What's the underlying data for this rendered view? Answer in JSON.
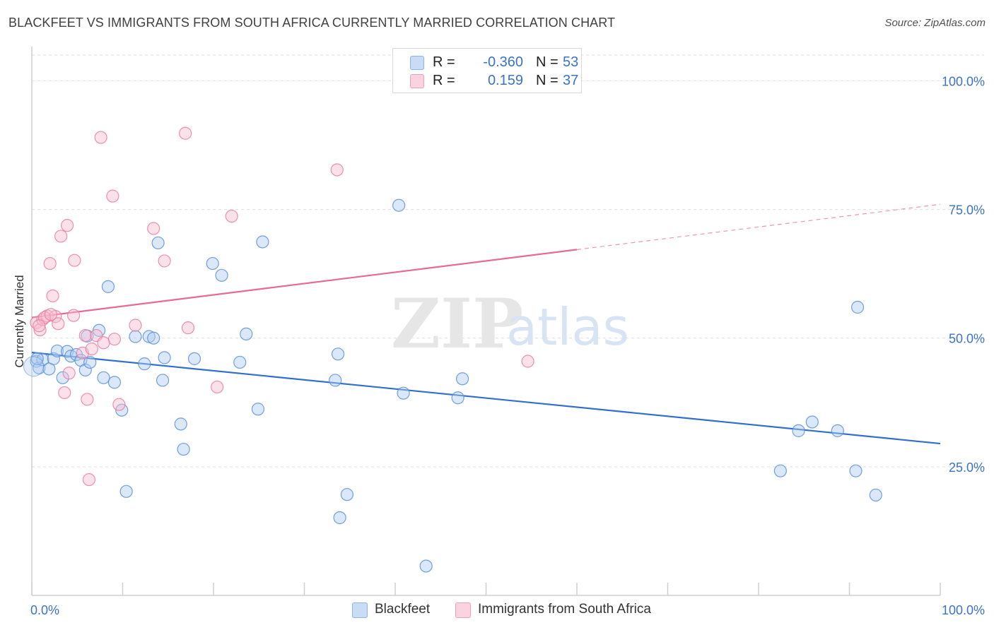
{
  "header": {
    "title": "BLACKFEET VS IMMIGRANTS FROM SOUTH AFRICA CURRENTLY MARRIED CORRELATION CHART",
    "source": "Source: ZipAtlas.com"
  },
  "watermark": {
    "zip": "ZIP",
    "atlas": "atlas"
  },
  "legend": {
    "rows": [
      {
        "r_label": "R =",
        "r_value": "-0.360",
        "n_label": "N =",
        "n_value": "53",
        "color": "#aecbf2"
      },
      {
        "r_label": "R =",
        "r_value": "0.159",
        "n_label": "N =",
        "n_value": "37",
        "color": "#f7bcd0"
      }
    ]
  },
  "bottom_legend": [
    {
      "label": "Blackfeet",
      "color": "#aecbf2"
    },
    {
      "label": "Immigrants from South Africa",
      "color": "#f7bcd0"
    }
  ],
  "chart_data": {
    "type": "scatter",
    "title": "BLACKFEET VS IMMIGRANTS FROM SOUTH AFRICA CURRENTLY MARRIED CORRELATION CHART",
    "xlabel": "",
    "ylabel": "Currently Married",
    "xlim": [
      0,
      100
    ],
    "ylim": [
      0,
      105
    ],
    "x_tick_labels": [
      "0.0%",
      "100.0%"
    ],
    "y_ticks": [
      25,
      50,
      75,
      100
    ],
    "y_tick_labels": [
      "25.0%",
      "50.0%",
      "75.0%",
      "100.0%"
    ],
    "grid": true,
    "legend_position": "top-center",
    "series": [
      {
        "name": "Blackfeet",
        "color": "#5b8fd6",
        "fill": "#aecbf2",
        "trend": {
          "x": [
            0,
            100
          ],
          "y": [
            47.2,
            29.5
          ],
          "solid_to": 100,
          "color": "#2f6fcf"
        },
        "points": [
          [
            0.5,
            45.5
          ],
          [
            0.8,
            44.2
          ],
          [
            1.2,
            45.8
          ],
          [
            1.9,
            44.0
          ],
          [
            2.4,
            46.0
          ],
          [
            2.8,
            47.5
          ],
          [
            3.4,
            42.3
          ],
          [
            3.9,
            47.4
          ],
          [
            4.3,
            46.5
          ],
          [
            4.9,
            46.8
          ],
          [
            5.4,
            45.7
          ],
          [
            5.9,
            43.8
          ],
          [
            6.4,
            45.3
          ],
          [
            7.4,
            51.5
          ],
          [
            7.9,
            42.3
          ],
          [
            8.4,
            60.0
          ],
          [
            9.1,
            41.4
          ],
          [
            9.9,
            36.0
          ],
          [
            10.4,
            20.2
          ],
          [
            11.4,
            50.3
          ],
          [
            12.4,
            45.0
          ],
          [
            12.9,
            50.3
          ],
          [
            13.4,
            50.0
          ],
          [
            13.9,
            68.5
          ],
          [
            14.4,
            41.8
          ],
          [
            14.6,
            46.2
          ],
          [
            16.4,
            33.3
          ],
          [
            16.7,
            28.4
          ],
          [
            17.9,
            46.0
          ],
          [
            19.9,
            64.5
          ],
          [
            20.9,
            62.2
          ],
          [
            22.9,
            45.3
          ],
          [
            23.6,
            50.8
          ],
          [
            24.9,
            36.2
          ],
          [
            25.4,
            68.7
          ],
          [
            33.4,
            41.8
          ],
          [
            33.7,
            46.9
          ],
          [
            34.7,
            19.6
          ],
          [
            33.9,
            15.1
          ],
          [
            40.4,
            75.8
          ],
          [
            40.9,
            39.3
          ],
          [
            43.4,
            5.7
          ],
          [
            46.9,
            38.4
          ],
          [
            47.4,
            42.1
          ],
          [
            82.4,
            24.2
          ],
          [
            84.4,
            32.0
          ],
          [
            85.9,
            33.7
          ],
          [
            88.7,
            32.0
          ],
          [
            90.9,
            56.0
          ],
          [
            90.7,
            24.2
          ],
          [
            92.9,
            19.5
          ],
          [
            0.6,
            46.0
          ],
          [
            6.1,
            50.4
          ]
        ]
      },
      {
        "name": "Immigrants from South Africa",
        "color": "#e87ea1",
        "fill": "#f7bcd0",
        "trend": {
          "x": [
            0,
            100
          ],
          "y": [
            54.0,
            76.0
          ],
          "solid_to": 60,
          "color": "#e66a93"
        },
        "points": [
          [
            0.5,
            53.0
          ],
          [
            0.9,
            51.6
          ],
          [
            1.2,
            53.6
          ],
          [
            1.7,
            54.3
          ],
          [
            2.0,
            64.5
          ],
          [
            2.3,
            58.2
          ],
          [
            2.6,
            54.2
          ],
          [
            2.9,
            52.8
          ],
          [
            3.2,
            69.8
          ],
          [
            3.6,
            39.4
          ],
          [
            3.9,
            71.9
          ],
          [
            4.1,
            43.2
          ],
          [
            4.6,
            54.4
          ],
          [
            4.7,
            65.1
          ],
          [
            5.6,
            47.1
          ],
          [
            5.9,
            50.5
          ],
          [
            6.1,
            38.1
          ],
          [
            6.3,
            22.5
          ],
          [
            6.6,
            47.9
          ],
          [
            7.1,
            50.5
          ],
          [
            7.6,
            89.0
          ],
          [
            7.9,
            49.1
          ],
          [
            8.9,
            77.6
          ],
          [
            9.1,
            49.8
          ],
          [
            9.6,
            37.1
          ],
          [
            11.4,
            52.5
          ],
          [
            13.4,
            71.3
          ],
          [
            14.6,
            65.0
          ],
          [
            16.9,
            89.8
          ],
          [
            17.2,
            52.0
          ],
          [
            20.4,
            40.5
          ],
          [
            22.0,
            73.7
          ],
          [
            33.6,
            82.7
          ],
          [
            54.6,
            45.5
          ],
          [
            1.4,
            54.0
          ],
          [
            0.8,
            52.4
          ],
          [
            2.1,
            54.6
          ]
        ]
      }
    ]
  }
}
